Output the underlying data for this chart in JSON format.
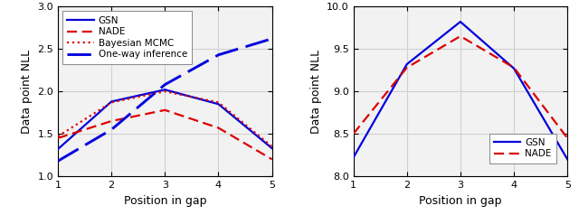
{
  "left": {
    "x": [
      1,
      2,
      3,
      4,
      5
    ],
    "gsn": [
      1.32,
      1.88,
      2.02,
      1.85,
      1.33
    ],
    "nade": [
      1.45,
      1.65,
      1.78,
      1.57,
      1.2
    ],
    "bayesian_mcmc": [
      1.47,
      1.87,
      2.0,
      1.87,
      1.35
    ],
    "one_way": [
      1.18,
      1.55,
      2.08,
      2.43,
      2.62
    ],
    "ylim": [
      1.0,
      3.0
    ],
    "yticks": [
      1.0,
      1.5,
      2.0,
      2.5,
      3.0
    ],
    "xlabel": "Position in gap",
    "ylabel": "Data point NLL",
    "legend_labels": [
      "GSN",
      "NADE",
      "Bayesian MCMC",
      "One-way inference"
    ]
  },
  "right": {
    "x": [
      1,
      2,
      3,
      4,
      5
    ],
    "gsn": [
      8.22,
      9.32,
      9.82,
      9.27,
      8.2
    ],
    "nade": [
      8.5,
      9.28,
      9.65,
      9.28,
      8.45
    ],
    "ylim": [
      8.0,
      10.0
    ],
    "yticks": [
      8.0,
      8.5,
      9.0,
      9.5,
      10.0
    ],
    "xlabel": "Position in gap",
    "ylabel": "Data point NLL",
    "legend_labels": [
      "GSN",
      "NADE"
    ]
  },
  "gsn_color": "#0000dd",
  "nade_color": "#dd0000",
  "bayesian_color": "#dd0000",
  "oneway_color": "#0000dd",
  "line_width": 1.6,
  "grid_color": "#d0d0d0",
  "bg_color": "#f2f2f2"
}
